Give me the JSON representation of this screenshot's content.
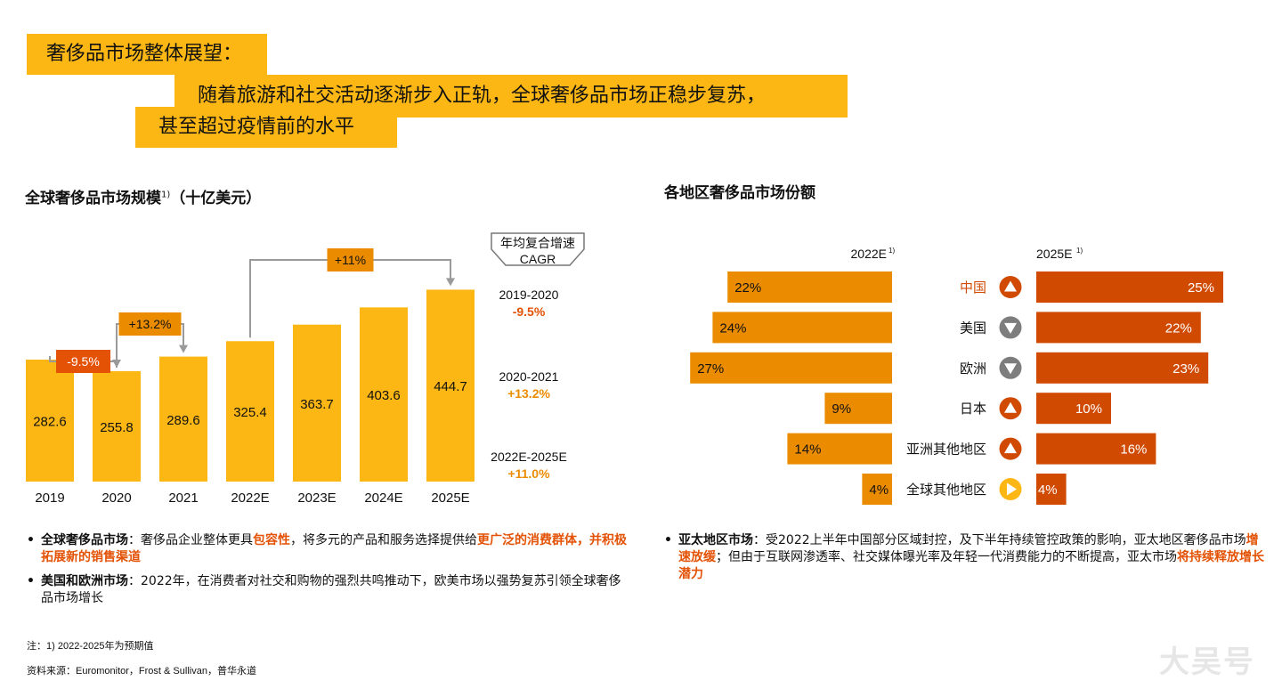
{
  "header": {
    "title": "奢侈品市场整体展望：",
    "subtitle_line1": "随着旅游和社交活动逐渐步入正轨，全球奢侈品市场正稳步复苏，",
    "subtitle_line2": "甚至超过疫情前的水平"
  },
  "left": {
    "title": "全球奢侈品市场规模",
    "title_sup": "1)",
    "title_unit": "（十亿美元）"
  },
  "right": {
    "title": "各地区奢侈品市场份额"
  },
  "chart_data": [
    {
      "type": "bar",
      "title": "全球奢侈品市场规模 1)（十亿美元）",
      "categories": [
        "2019",
        "2020",
        "2021",
        "2022E",
        "2023E",
        "2024E",
        "2025E"
      ],
      "values": [
        282.6,
        255.8,
        289.6,
        325.4,
        363.7,
        403.6,
        444.7
      ],
      "value_labels": [
        "282.6",
        "255.8",
        "289.6",
        "325.4",
        "363.7",
        "403.6",
        "444.7"
      ],
      "ylim": [
        0,
        460
      ],
      "growth_annotations": [
        {
          "from": "2019",
          "to": "2020",
          "label": "-9.5%"
        },
        {
          "from": "2020",
          "to": "2021",
          "label": "+13.2%"
        },
        {
          "from": "2022E",
          "to": "2025E",
          "label": "+11%"
        }
      ],
      "cagr_header_line1": "年均复合增速",
      "cagr_header_line2": "CAGR",
      "cagr": [
        {
          "period": "2019-2020",
          "value": "-9.5%"
        },
        {
          "period": "2020-2021",
          "value": "+13.2%"
        },
        {
          "period": "2022E-2025E",
          "value": "+11.0%"
        }
      ],
      "colors": {
        "bar": "#FDB714",
        "negative": "#E35205",
        "positive": "#EB8C00",
        "connector": "#9a9a9a"
      }
    },
    {
      "type": "bar",
      "title": "各地区奢侈品市场份额",
      "categories": [
        "中国",
        "美国",
        "欧洲",
        "日本",
        "亚洲其他地区",
        "全球其他地区"
      ],
      "series": [
        {
          "name": "2022E",
          "values": [
            22,
            24,
            27,
            9,
            14,
            4
          ],
          "labels": [
            "22%",
            "24%",
            "27%",
            "9%",
            "14%",
            "4%"
          ]
        },
        {
          "name": "2025E",
          "values": [
            25,
            22,
            23,
            10,
            16,
            4
          ],
          "labels": [
            "25%",
            "22%",
            "23%",
            "10%",
            "16%",
            "4%"
          ]
        }
      ],
      "series_header_sup": "1)",
      "trend": [
        "up",
        "down",
        "down",
        "up",
        "up",
        "flat"
      ],
      "trend_icons": [
        "up-triangle-icon",
        "down-triangle-icon",
        "down-triangle-icon",
        "up-triangle-icon",
        "up-triangle-icon",
        "right-triangle-icon"
      ],
      "xlim": [
        0,
        27
      ],
      "colors": {
        "2022E": "#EB8C00",
        "2025E": "#D04A02",
        "up": "#D04A02",
        "down": "#7d7d7d",
        "flat": "#FDB714"
      }
    }
  ],
  "bullets_left": [
    {
      "segments": [
        {
          "text": "全球奢侈品市场",
          "style": "bold"
        },
        {
          "text": "：奢侈品企业整体更具",
          "style": "normal"
        },
        {
          "text": "包容性",
          "style": "em"
        },
        {
          "text": "，将多元的产品和服务选择提供给",
          "style": "normal"
        },
        {
          "text": "更广泛的消费群体，并积极拓展新的销售渠道",
          "style": "em"
        }
      ]
    },
    {
      "segments": [
        {
          "text": "美国和欧洲市场",
          "style": "bold"
        },
        {
          "text": "：2022年，在消费者对社交和购物的强烈共鸣推动下，欧美市场以强势复苏引领全球奢侈品市场增长",
          "style": "normal"
        }
      ]
    }
  ],
  "bullets_right": [
    {
      "segments": [
        {
          "text": "亚太地区市场",
          "style": "bold"
        },
        {
          "text": "：受2022上半年中国部分区域封控，及下半年持续管控政策的影响，亚太地区奢侈品市场",
          "style": "normal"
        },
        {
          "text": "增速放缓",
          "style": "em"
        },
        {
          "text": "；但由于互联网渗透率、社交媒体曝光率及年轻一代消费能力的不断提高，亚太市场",
          "style": "normal"
        },
        {
          "text": "将持续释放增长潜力",
          "style": "em"
        }
      ]
    }
  ],
  "footnotes": {
    "note": "注：1) 2022-2025年为预期值",
    "source": "资料来源：Euromonitor，Frost & Sullivan，普华永道"
  },
  "watermark": "大吴号"
}
